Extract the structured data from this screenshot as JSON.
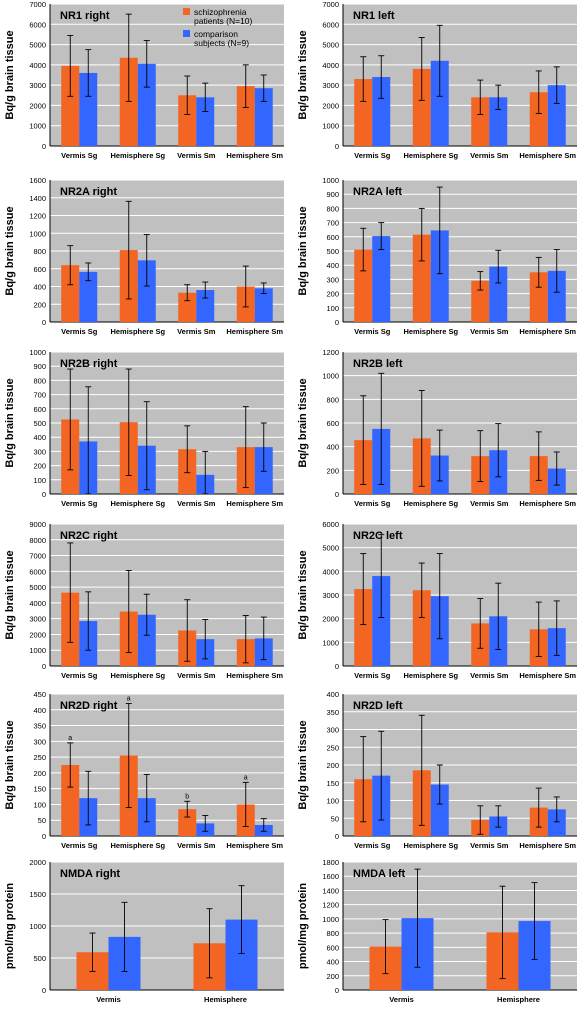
{
  "legend": {
    "patients_label": [
      "schizophrenia",
      "patients (N=10)"
    ],
    "comparison_label": [
      "comparison",
      "subjects (N=9)"
    ]
  },
  "colors": {
    "patients": "#f26522",
    "comparison": "#3366ff",
    "plot_bg": "#c0c0c0",
    "grid": "#ffffff"
  },
  "chart_data": [
    {
      "type": "bar",
      "title": "NR1 right",
      "ylabel": "Bq/g brain tissue",
      "ylim": [
        0,
        7000
      ],
      "yticks": [
        0,
        1000,
        2000,
        3000,
        4000,
        5000,
        6000,
        7000
      ],
      "categories": [
        "Vermis Sg",
        "Hemisphere Sg",
        "Vermis Sm",
        "Hemisphere Sm"
      ],
      "show_legend": true,
      "series": [
        {
          "name": "schizophrenia patients (N=10)",
          "values": [
            3950,
            4350,
            2500,
            2950
          ],
          "errors": [
            1500,
            2150,
            950,
            1050
          ]
        },
        {
          "name": "comparison subjects (N=9)",
          "values": [
            3600,
            4050,
            2400,
            2850
          ],
          "errors": [
            1150,
            1150,
            700,
            650
          ]
        }
      ]
    },
    {
      "type": "bar",
      "title": "NR1 left",
      "ylabel": "Bq/g brain tissue",
      "ylim": [
        0,
        7000
      ],
      "yticks": [
        0,
        1000,
        2000,
        3000,
        4000,
        5000,
        6000,
        7000
      ],
      "categories": [
        "Vermis Sg",
        "Hemisphere Sg",
        "Vermis Sm",
        "Hemisphere Sm"
      ],
      "series": [
        {
          "values": [
            3300,
            3800,
            2400,
            2650
          ],
          "errors": [
            1100,
            1550,
            850,
            1050
          ]
        },
        {
          "values": [
            3400,
            4200,
            2400,
            3000
          ],
          "errors": [
            1050,
            1750,
            600,
            900
          ]
        }
      ]
    },
    {
      "type": "bar",
      "title": "NR2A right",
      "ylabel": "Bq/g brain tissue",
      "ylim": [
        0,
        1600
      ],
      "yticks": [
        0,
        200,
        400,
        600,
        800,
        1000,
        1200,
        1400,
        1600
      ],
      "categories": [
        "Vermis Sg",
        "Hemisphere Sg",
        "Vermis Sm",
        "Hemisphere Sm"
      ],
      "series": [
        {
          "values": [
            640,
            810,
            330,
            400
          ],
          "errors": [
            220,
            550,
            90,
            230
          ]
        },
        {
          "values": [
            565,
            695,
            360,
            380
          ],
          "errors": [
            100,
            290,
            90,
            60
          ]
        }
      ]
    },
    {
      "type": "bar",
      "title": "NR2A left",
      "ylabel": "Bq/g brain tissue",
      "ylim": [
        0,
        1000
      ],
      "yticks": [
        0,
        100,
        200,
        300,
        400,
        500,
        600,
        700,
        800,
        900,
        1000
      ],
      "categories": [
        "Vermis Sg",
        "Hemisphere Sg",
        "Vermis Sm",
        "Hemisphere Sm"
      ],
      "series": [
        {
          "values": [
            510,
            615,
            290,
            350
          ],
          "errors": [
            150,
            185,
            65,
            105
          ]
        },
        {
          "values": [
            605,
            645,
            390,
            360
          ],
          "errors": [
            95,
            305,
            115,
            150
          ]
        }
      ]
    },
    {
      "type": "bar",
      "title": "NR2B right",
      "ylabel": "Bq/g brain tissue",
      "ylim": [
        0,
        1000
      ],
      "yticks": [
        0,
        100,
        200,
        300,
        400,
        500,
        600,
        700,
        800,
        900,
        1000
      ],
      "categories": [
        "Vermis Sg",
        "Hemisphere Sg",
        "Vermis Sm",
        "Hemisphere Sm"
      ],
      "series": [
        {
          "values": [
            525,
            505,
            315,
            330
          ],
          "errors": [
            355,
            375,
            165,
            285
          ]
        },
        {
          "values": [
            370,
            340,
            135,
            330
          ],
          "errors": [
            385,
            310,
            165,
            170
          ]
        }
      ]
    },
    {
      "type": "bar",
      "title": "NR2B left",
      "ylabel": "Bq/g brain tissue",
      "ylim": [
        0,
        1200
      ],
      "yticks": [
        0,
        200,
        400,
        600,
        800,
        1000,
        1200
      ],
      "categories": [
        "Vermis Sg",
        "Hemisphere Sg",
        "Vermis Sm",
        "Hemisphere Sm"
      ],
      "series": [
        {
          "values": [
            455,
            470,
            320,
            320
          ],
          "errors": [
            375,
            405,
            215,
            205
          ]
        },
        {
          "values": [
            550,
            325,
            370,
            215
          ],
          "errors": [
            470,
            215,
            225,
            140
          ]
        }
      ]
    },
    {
      "type": "bar",
      "title": "NR2C right",
      "ylabel": "Bq/g brain tissue",
      "ylim": [
        0,
        9000
      ],
      "yticks": [
        0,
        1000,
        2000,
        3000,
        4000,
        5000,
        6000,
        7000,
        8000,
        9000
      ],
      "categories": [
        "Vermis Sg",
        "Hemisphere Sg",
        "Vermis Sm",
        "Hemisphere Sm"
      ],
      "series": [
        {
          "values": [
            4650,
            3450,
            2250,
            1700
          ],
          "errors": [
            3150,
            2600,
            1950,
            1500
          ]
        },
        {
          "values": [
            2850,
            3250,
            1700,
            1750
          ],
          "errors": [
            1850,
            1300,
            1250,
            1350
          ]
        }
      ]
    },
    {
      "type": "bar",
      "title": "NR2C left",
      "ylabel": "Bq/g brain tissue",
      "ylim": [
        0,
        6000
      ],
      "yticks": [
        0,
        1000,
        2000,
        3000,
        4000,
        5000,
        6000
      ],
      "categories": [
        "Vermis Sg",
        "Hemisphere Sg",
        "Vermis Sm",
        "Hemisphere Sm"
      ],
      "series": [
        {
          "values": [
            3250,
            3200,
            1800,
            1550
          ],
          "errors": [
            1500,
            1150,
            1050,
            1150
          ]
        },
        {
          "values": [
            3800,
            2950,
            2100,
            1600
          ],
          "errors": [
            1750,
            1800,
            1400,
            1150
          ]
        }
      ]
    },
    {
      "type": "bar",
      "title": "NR2D right",
      "ylabel": "Bq/g brain tissue",
      "ylim": [
        0,
        450
      ],
      "yticks": [
        0,
        50,
        100,
        150,
        200,
        250,
        300,
        350,
        400,
        450
      ],
      "categories": [
        "Vermis Sg",
        "Hemisphere Sg",
        "Vermis Sm",
        "Hemisphere Sm"
      ],
      "annotations": [
        "a",
        "a",
        "b",
        "a"
      ],
      "series": [
        {
          "values": [
            225,
            255,
            85,
            100
          ],
          "errors": [
            70,
            165,
            25,
            70
          ]
        },
        {
          "values": [
            120,
            120,
            40,
            35
          ],
          "errors": [
            85,
            75,
            25,
            20
          ]
        }
      ]
    },
    {
      "type": "bar",
      "title": "NR2D left",
      "ylabel": "Bq/g brain tissue",
      "ylim": [
        0,
        400
      ],
      "yticks": [
        0,
        50,
        100,
        150,
        200,
        250,
        300,
        350,
        400
      ],
      "categories": [
        "Vermis Sg",
        "Hemisphere Sg",
        "Vermis Sm",
        "Hemisphere Sm"
      ],
      "series": [
        {
          "values": [
            160,
            185,
            45,
            80
          ],
          "errors": [
            120,
            155,
            40,
            55
          ]
        },
        {
          "values": [
            170,
            145,
            55,
            75
          ],
          "errors": [
            125,
            55,
            30,
            35
          ]
        }
      ]
    },
    {
      "type": "bar",
      "title": "NMDA right",
      "ylabel": "pmol/mg protein",
      "ylim": [
        0,
        2000
      ],
      "yticks": [
        0,
        500,
        1000,
        1500,
        2000
      ],
      "categories": [
        "Vermis",
        "Hemisphere"
      ],
      "series": [
        {
          "values": [
            590,
            730
          ],
          "errors": [
            300,
            540
          ]
        },
        {
          "values": [
            830,
            1100
          ],
          "errors": [
            540,
            530
          ]
        }
      ]
    },
    {
      "type": "bar",
      "title": "NMDA left",
      "ylabel": "pmol/mg protein",
      "ylim": [
        0,
        1800
      ],
      "yticks": [
        0,
        200,
        400,
        600,
        800,
        1000,
        1200,
        1400,
        1600,
        1800
      ],
      "categories": [
        "Vermis",
        "Hemisphere"
      ],
      "series": [
        {
          "values": [
            610,
            810
          ],
          "errors": [
            380,
            650
          ]
        },
        {
          "values": [
            1010,
            970
          ],
          "errors": [
            690,
            540
          ]
        }
      ]
    }
  ]
}
